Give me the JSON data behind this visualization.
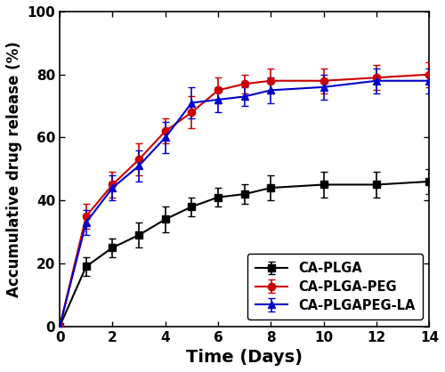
{
  "time": [
    0,
    1,
    2,
    3,
    4,
    5,
    6,
    7,
    8,
    10,
    12,
    14
  ],
  "CA_PLGA_y": [
    0,
    19,
    25,
    29,
    34,
    38,
    41,
    42,
    44,
    45,
    45,
    46
  ],
  "CA_PLGA_err": [
    0,
    3,
    3,
    4,
    4,
    3,
    3,
    3,
    4,
    4,
    4,
    4
  ],
  "CA_PLGA_PEG_y": [
    0,
    35,
    45,
    53,
    62,
    68,
    75,
    77,
    78,
    78,
    79,
    80
  ],
  "CA_PLGA_PEG_err": [
    0,
    4,
    4,
    5,
    4,
    5,
    4,
    3,
    4,
    4,
    4,
    4
  ],
  "CA_PLGA_PEG_LA_y": [
    0,
    33,
    44,
    51,
    60,
    71,
    72,
    73,
    75,
    76,
    78,
    78
  ],
  "CA_PLGA_PEG_LA_err": [
    0,
    4,
    4,
    5,
    5,
    5,
    4,
    3,
    4,
    4,
    4,
    4
  ],
  "xlabel": "Time (Days)",
  "ylabel": "Accumulative drug release (%)",
  "ylim": [
    0,
    100
  ],
  "xlim": [
    0,
    14
  ],
  "xticks": [
    0,
    2,
    4,
    6,
    8,
    10,
    12,
    14
  ],
  "yticks": [
    0,
    20,
    40,
    60,
    80,
    100
  ],
  "legend_labels": [
    "CA-PLGA",
    "CA-PLGA-PEG",
    "CA-PLGAPEG-LA"
  ],
  "color_black": "#000000",
  "color_red": "#cc0000",
  "color_blue": "#0000cc",
  "linewidth": 1.5,
  "markersize": 6,
  "capsize": 3,
  "elinewidth": 1.2,
  "legend_loc": "lower right",
  "xlabel_fontsize": 14,
  "ylabel_fontsize": 12,
  "tick_fontsize": 11,
  "legend_fontsize": 10.5
}
